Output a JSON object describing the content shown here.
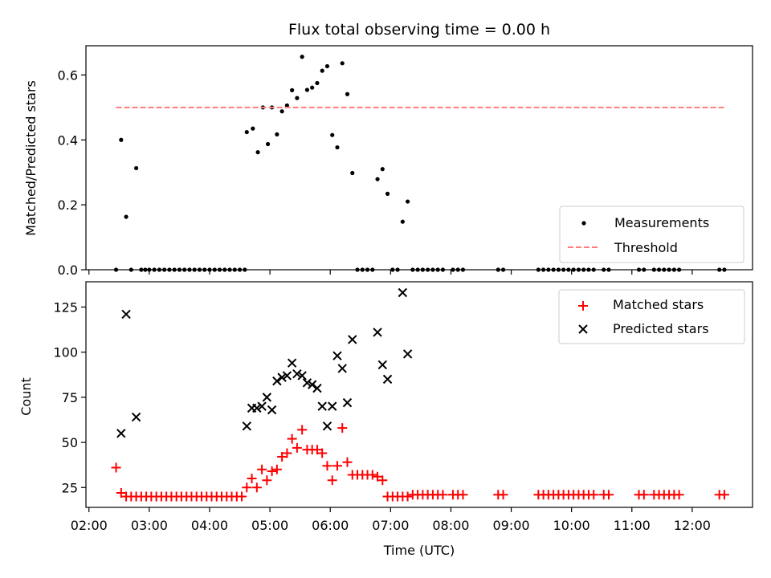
{
  "chart_data": [
    {
      "type": "scatter",
      "title": "Flux total observing time = 0.00 h",
      "xlabel": "",
      "ylabel": "Matched/Predicted stars",
      "ylim": [
        0,
        0.69
      ],
      "yticks": [
        "0.0",
        "0.2",
        "0.4",
        "0.6"
      ],
      "xlim": [
        "02:00",
        "13:00"
      ],
      "legend_position": "lower-right",
      "series": [
        {
          "name": "Measurements",
          "marker": "dot",
          "color": "#000000",
          "points": [
            [
              "02:27",
              0
            ],
            [
              "02:32",
              0.4
            ],
            [
              "02:37",
              0.163
            ],
            [
              "02:47",
              0.313
            ],
            [
              "02:42",
              0
            ],
            [
              "02:52",
              0
            ],
            [
              "02:56",
              0
            ],
            [
              "03:00",
              0
            ],
            [
              "03:05",
              0
            ],
            [
              "03:10",
              0
            ],
            [
              "03:15",
              0
            ],
            [
              "03:20",
              0
            ],
            [
              "03:25",
              0
            ],
            [
              "03:30",
              0
            ],
            [
              "03:35",
              0
            ],
            [
              "03:40",
              0
            ],
            [
              "03:45",
              0
            ],
            [
              "03:50",
              0
            ],
            [
              "03:55",
              0
            ],
            [
              "04:00",
              0
            ],
            [
              "04:05",
              0
            ],
            [
              "04:10",
              0
            ],
            [
              "04:15",
              0
            ],
            [
              "04:20",
              0
            ],
            [
              "04:25",
              0
            ],
            [
              "04:30",
              0
            ],
            [
              "04:35",
              0
            ],
            [
              "04:37",
              0.424
            ],
            [
              "04:43",
              0.435
            ],
            [
              "04:48",
              0.362
            ],
            [
              "04:53",
              0.5
            ],
            [
              "04:58",
              0.387
            ],
            [
              "05:02",
              0.5
            ],
            [
              "05:07",
              0.417
            ],
            [
              "05:12",
              0.488
            ],
            [
              "05:17",
              0.506
            ],
            [
              "05:22",
              0.553
            ],
            [
              "05:27",
              0.529
            ],
            [
              "05:32",
              0.656
            ],
            [
              "05:37",
              0.554
            ],
            [
              "05:42",
              0.561
            ],
            [
              "05:47",
              0.575
            ],
            [
              "05:52",
              0.613
            ],
            [
              "05:57",
              0.627
            ],
            [
              "06:02",
              0.415
            ],
            [
              "06:07",
              0.377
            ],
            [
              "06:12",
              0.636
            ],
            [
              "06:17",
              0.541
            ],
            [
              "06:22",
              0.298
            ],
            [
              "06:27",
              0
            ],
            [
              "06:32",
              0
            ],
            [
              "06:37",
              0
            ],
            [
              "06:42",
              0
            ],
            [
              "06:47",
              0.279
            ],
            [
              "06:52",
              0.31
            ],
            [
              "06:57",
              0.234
            ],
            [
              "07:02",
              0
            ],
            [
              "07:07",
              0
            ],
            [
              "07:12",
              0.148
            ],
            [
              "07:17",
              0.21
            ],
            [
              "07:22",
              0
            ],
            [
              "07:27",
              0
            ],
            [
              "07:32",
              0
            ],
            [
              "07:37",
              0
            ],
            [
              "07:42",
              0
            ],
            [
              "07:47",
              0
            ],
            [
              "07:52",
              0
            ],
            [
              "08:02",
              0
            ],
            [
              "08:07",
              0
            ],
            [
              "08:12",
              0
            ],
            [
              "08:47",
              0
            ],
            [
              "08:52",
              0
            ],
            [
              "09:27",
              0
            ],
            [
              "09:32",
              0
            ],
            [
              "09:37",
              0
            ],
            [
              "09:42",
              0
            ],
            [
              "09:47",
              0
            ],
            [
              "09:52",
              0
            ],
            [
              "09:57",
              0
            ],
            [
              "10:02",
              0
            ],
            [
              "10:07",
              0
            ],
            [
              "10:12",
              0
            ],
            [
              "10:17",
              0
            ],
            [
              "10:22",
              0
            ],
            [
              "10:32",
              0
            ],
            [
              "10:37",
              0
            ],
            [
              "11:07",
              0
            ],
            [
              "11:12",
              0
            ],
            [
              "11:22",
              0
            ],
            [
              "11:27",
              0
            ],
            [
              "11:32",
              0
            ],
            [
              "11:37",
              0
            ],
            [
              "11:42",
              0
            ],
            [
              "11:47",
              0
            ],
            [
              "12:27",
              0
            ],
            [
              "12:32",
              0
            ]
          ]
        },
        {
          "name": "Threshold",
          "style": "dashed-line",
          "color": "#ff7f7f",
          "points": [
            [
              "02:27",
              0.5
            ],
            [
              "12:32",
              0.5
            ]
          ]
        }
      ]
    },
    {
      "type": "scatter",
      "title": "",
      "xlabel": "Time (UTC)",
      "ylabel": "Count",
      "ylim": [
        14,
        139
      ],
      "yticks": [
        "25",
        "50",
        "75",
        "100",
        "125"
      ],
      "xlim": [
        "02:00",
        "13:00"
      ],
      "xticks": [
        "02:00",
        "03:00",
        "04:00",
        "05:00",
        "06:00",
        "07:00",
        "08:00",
        "09:00",
        "10:00",
        "11:00",
        "12:00"
      ],
      "legend_position": "upper-right",
      "series": [
        {
          "name": "Matched stars",
          "marker": "plus",
          "color": "#ff0000",
          "points": [
            [
              "02:27",
              36
            ],
            [
              "02:32",
              22
            ],
            [
              "02:37",
              20
            ],
            [
              "02:42",
              20
            ],
            [
              "02:47",
              20
            ],
            [
              "02:52",
              20
            ],
            [
              "02:57",
              20
            ],
            [
              "03:02",
              20
            ],
            [
              "03:07",
              20
            ],
            [
              "03:12",
              20
            ],
            [
              "03:17",
              20
            ],
            [
              "03:22",
              20
            ],
            [
              "03:27",
              20
            ],
            [
              "03:32",
              20
            ],
            [
              "03:37",
              20
            ],
            [
              "03:42",
              20
            ],
            [
              "03:47",
              20
            ],
            [
              "03:52",
              20
            ],
            [
              "03:57",
              20
            ],
            [
              "04:02",
              20
            ],
            [
              "04:07",
              20
            ],
            [
              "04:12",
              20
            ],
            [
              "04:17",
              20
            ],
            [
              "04:22",
              20
            ],
            [
              "04:27",
              20
            ],
            [
              "04:32",
              20
            ],
            [
              "04:37",
              25
            ],
            [
              "04:42",
              30
            ],
            [
              "04:47",
              25
            ],
            [
              "04:52",
              35
            ],
            [
              "04:57",
              29
            ],
            [
              "05:02",
              34
            ],
            [
              "05:07",
              35
            ],
            [
              "05:12",
              42
            ],
            [
              "05:17",
              44
            ],
            [
              "05:22",
              52
            ],
            [
              "05:27",
              47
            ],
            [
              "05:32",
              57
            ],
            [
              "05:37",
              46
            ],
            [
              "05:42",
              46
            ],
            [
              "05:47",
              46
            ],
            [
              "05:52",
              44
            ],
            [
              "05:57",
              37
            ],
            [
              "06:02",
              29
            ],
            [
              "06:07",
              37
            ],
            [
              "06:12",
              58
            ],
            [
              "06:17",
              39
            ],
            [
              "06:22",
              32
            ],
            [
              "06:27",
              32
            ],
            [
              "06:32",
              32
            ],
            [
              "06:37",
              32
            ],
            [
              "06:42",
              32
            ],
            [
              "06:47",
              31
            ],
            [
              "06:52",
              29
            ],
            [
              "06:57",
              20
            ],
            [
              "07:02",
              20
            ],
            [
              "07:07",
              20
            ],
            [
              "07:12",
              20
            ],
            [
              "07:17",
              20
            ],
            [
              "07:22",
              21
            ],
            [
              "07:27",
              21
            ],
            [
              "07:32",
              21
            ],
            [
              "07:37",
              21
            ],
            [
              "07:42",
              21
            ],
            [
              "07:47",
              21
            ],
            [
              "07:52",
              21
            ],
            [
              "08:02",
              21
            ],
            [
              "08:07",
              21
            ],
            [
              "08:12",
              21
            ],
            [
              "08:47",
              21
            ],
            [
              "08:52",
              21
            ],
            [
              "09:27",
              21
            ],
            [
              "09:32",
              21
            ],
            [
              "09:37",
              21
            ],
            [
              "09:42",
              21
            ],
            [
              "09:47",
              21
            ],
            [
              "09:52",
              21
            ],
            [
              "09:57",
              21
            ],
            [
              "10:02",
              21
            ],
            [
              "10:07",
              21
            ],
            [
              "10:12",
              21
            ],
            [
              "10:17",
              21
            ],
            [
              "10:22",
              21
            ],
            [
              "10:32",
              21
            ],
            [
              "10:37",
              21
            ],
            [
              "11:07",
              21
            ],
            [
              "11:12",
              21
            ],
            [
              "11:22",
              21
            ],
            [
              "11:27",
              21
            ],
            [
              "11:32",
              21
            ],
            [
              "11:37",
              21
            ],
            [
              "11:42",
              21
            ],
            [
              "11:47",
              21
            ],
            [
              "12:27",
              21
            ],
            [
              "12:32",
              21
            ]
          ]
        },
        {
          "name": "Predicted stars",
          "marker": "x",
          "color": "#000000",
          "points": [
            [
              "02:32",
              55
            ],
            [
              "02:37",
              121
            ],
            [
              "02:47",
              64
            ],
            [
              "04:37",
              59
            ],
            [
              "04:42",
              69
            ],
            [
              "04:47",
              69
            ],
            [
              "04:52",
              70
            ],
            [
              "04:57",
              75
            ],
            [
              "05:02",
              68
            ],
            [
              "05:07",
              84
            ],
            [
              "05:12",
              86
            ],
            [
              "05:17",
              87
            ],
            [
              "05:22",
              94
            ],
            [
              "05:27",
              88
            ],
            [
              "05:32",
              87
            ],
            [
              "05:37",
              83
            ],
            [
              "05:42",
              82
            ],
            [
              "05:47",
              80
            ],
            [
              "05:52",
              70
            ],
            [
              "05:57",
              59
            ],
            [
              "06:02",
              70
            ],
            [
              "06:07",
              98
            ],
            [
              "06:12",
              91
            ],
            [
              "06:17",
              72
            ],
            [
              "06:22",
              107
            ],
            [
              "06:47",
              111
            ],
            [
              "06:52",
              93
            ],
            [
              "06:57",
              85
            ],
            [
              "07:12",
              133
            ],
            [
              "07:17",
              99
            ]
          ]
        }
      ]
    }
  ]
}
